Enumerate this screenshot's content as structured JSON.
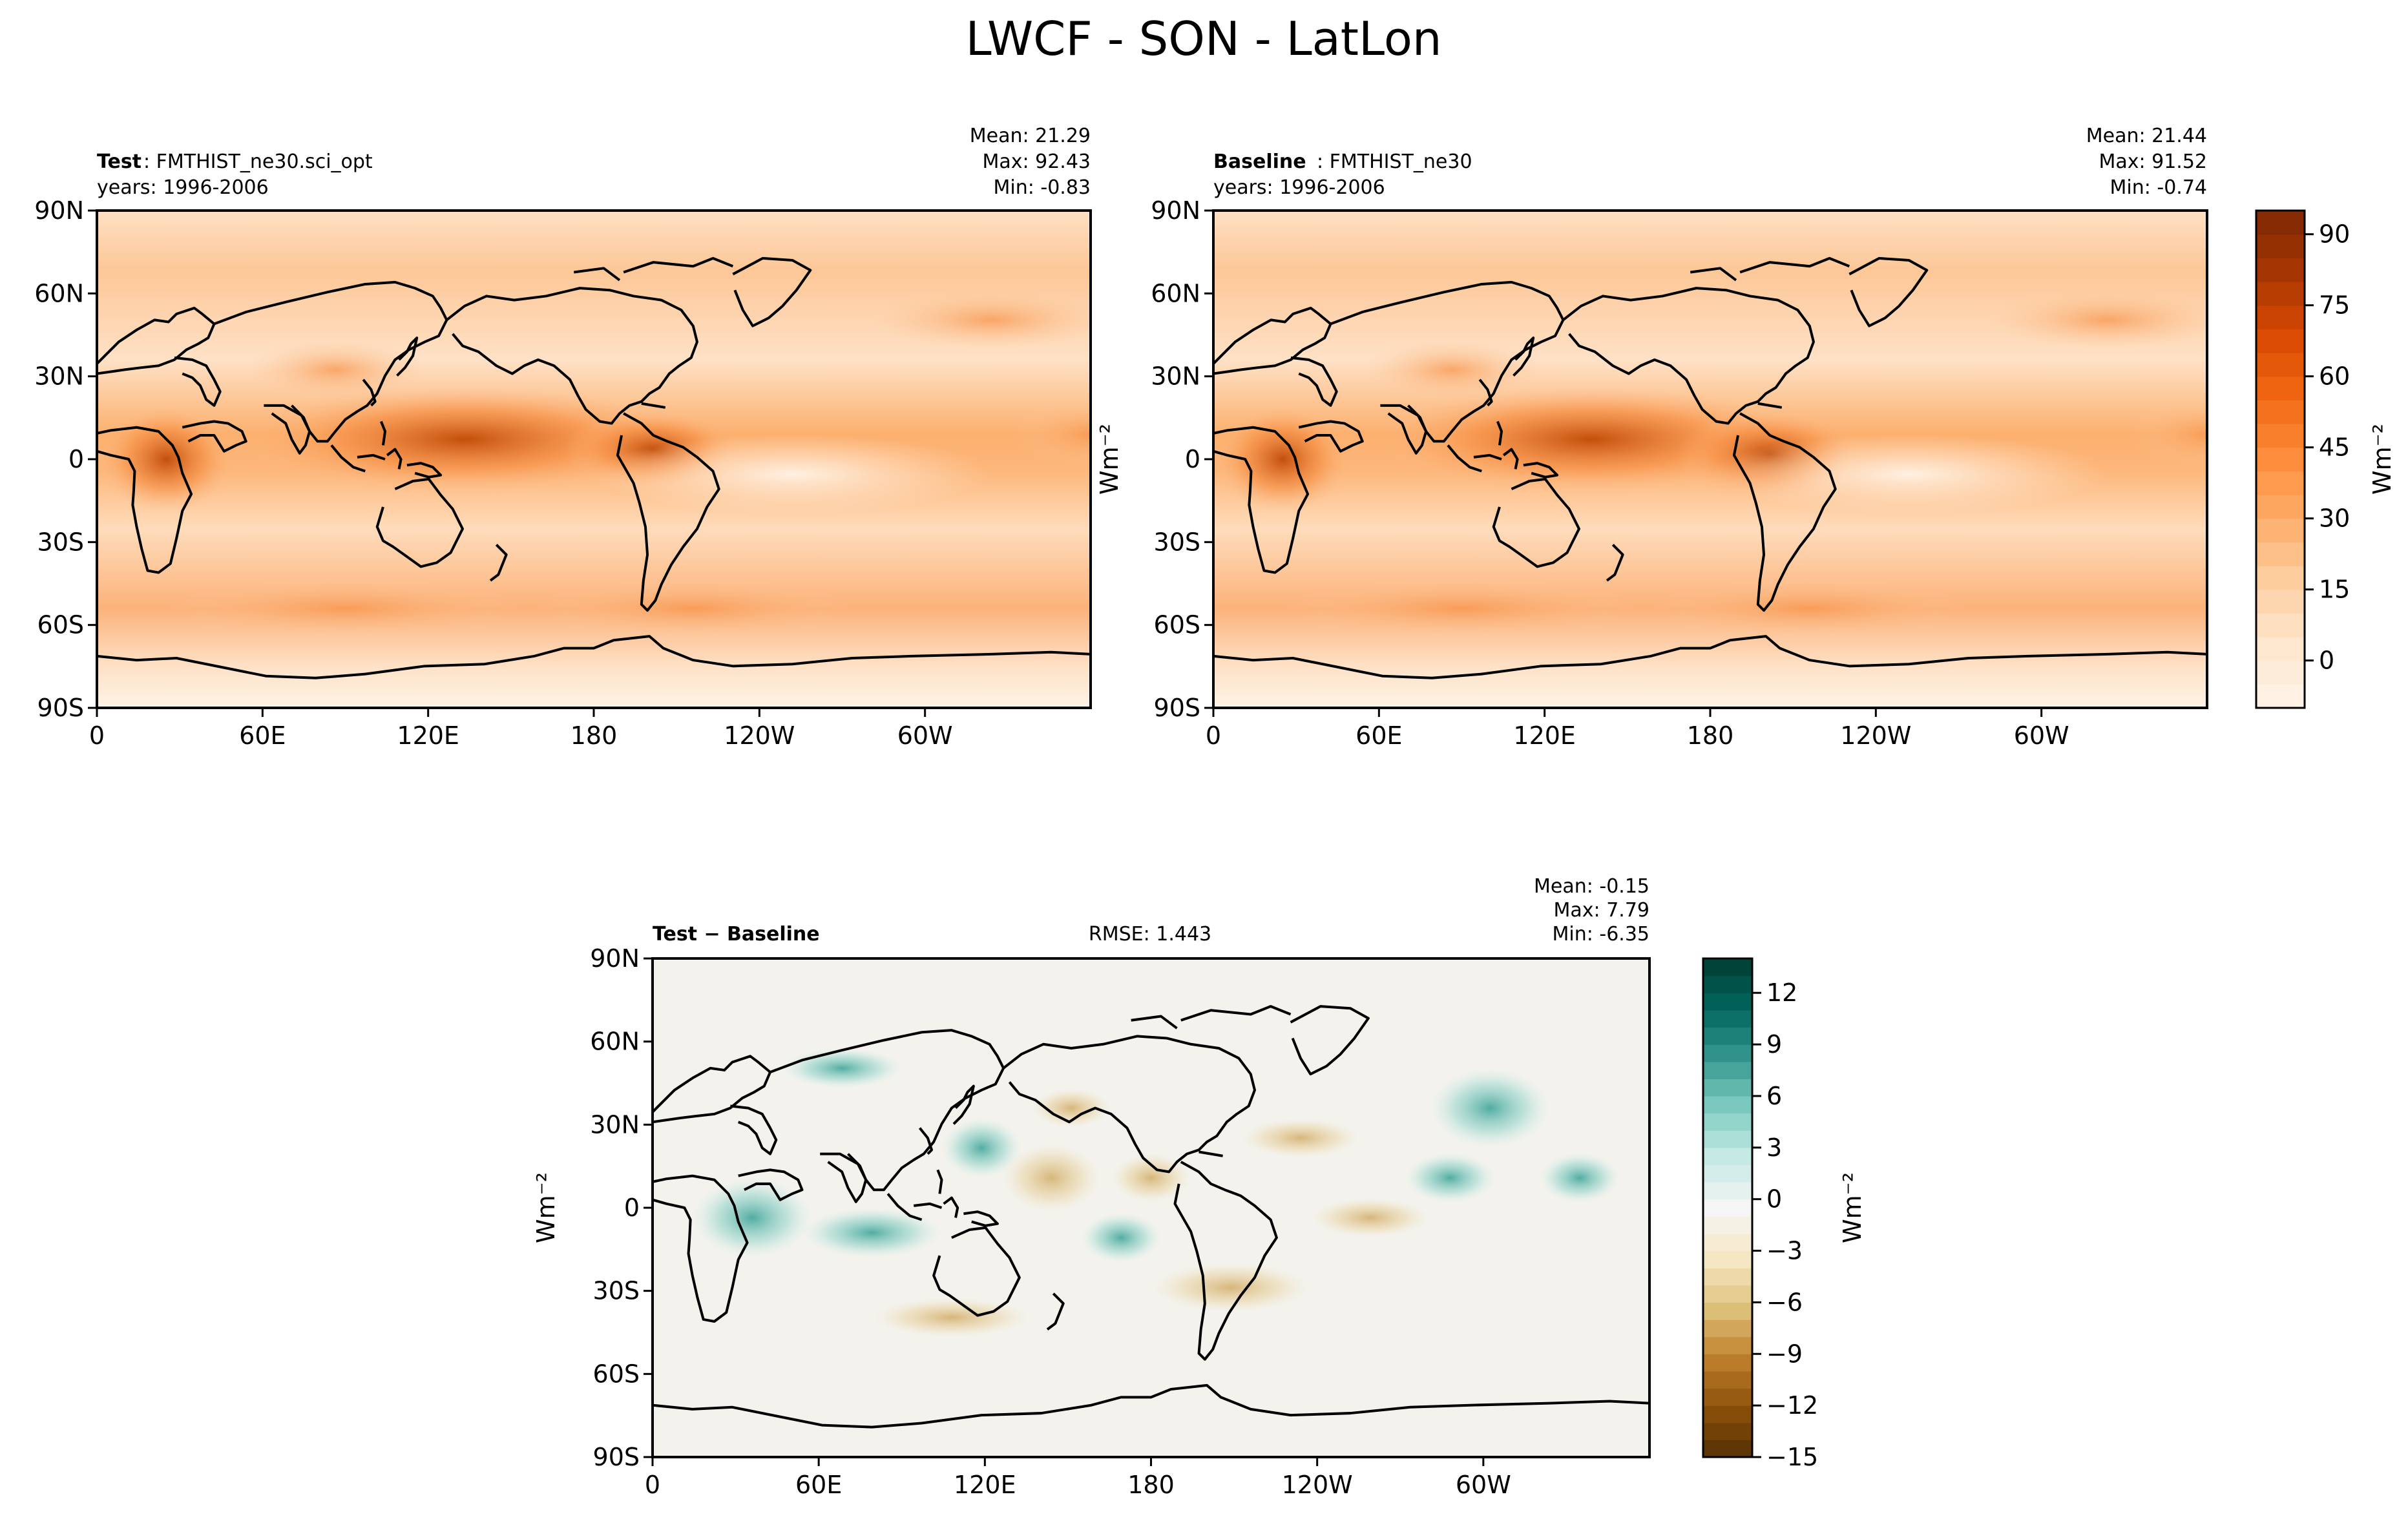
{
  "figure": {
    "title": "LWCF - SON - LatLon"
  },
  "panels": [
    {
      "id": "test",
      "label_bold": "Test",
      "label_rest": ": FMTHIST_ne30.sci_opt",
      "years": "years: 1996-2006",
      "stats": {
        "mean": "Mean: 21.29",
        "max": "Max: 92.43",
        "min": "Min: -0.83"
      },
      "rmse": ""
    },
    {
      "id": "baseline",
      "label_bold": "Baseline",
      "label_rest": ": FMTHIST_ne30",
      "years": "years: 1996-2006",
      "stats": {
        "mean": "Mean: 21.44",
        "max": "Max: 91.52",
        "min": "Min: -0.74"
      },
      "rmse": ""
    },
    {
      "id": "diff",
      "label_bold": "Test − Baseline",
      "label_rest": "",
      "years": "",
      "stats": {
        "mean": "Mean: -0.15",
        "max": "Max:  7.79",
        "min": "Min: -6.35"
      },
      "rmse": "RMSE: 1.443"
    }
  ],
  "axes": {
    "lat_ticks": [
      "90N",
      "60N",
      "30N",
      "0",
      "30S",
      "60S",
      "90S"
    ],
    "lon_ticks": [
      "0",
      "60E",
      "120E",
      "180",
      "120W",
      "60W"
    ]
  },
  "colorbars": {
    "main": {
      "unit": "Wm⁻²",
      "ticks": [
        "90",
        "75",
        "60",
        "45",
        "30",
        "15",
        "0"
      ],
      "range": [
        -10,
        95
      ],
      "colors": [
        "#fff5eb",
        "#fee6ce",
        "#fdd0a2",
        "#fdae6b",
        "#fd8d3c",
        "#f16913",
        "#d94801",
        "#a63603",
        "#7f2704"
      ]
    },
    "diff": {
      "unit": "Wm⁻²",
      "ticks": [
        "12",
        "9",
        "6",
        "3",
        "0",
        "−3",
        "−6",
        "−9",
        "−12",
        "−15"
      ],
      "range": [
        -15,
        14
      ],
      "colors": [
        "#543005",
        "#8c510a",
        "#bf812d",
        "#dfc27d",
        "#f6e8c3",
        "#f5f5f5",
        "#c7eae5",
        "#80cdc1",
        "#35978f",
        "#01665e",
        "#003c30"
      ]
    }
  },
  "side_unit_labels": {
    "between_top_maps": "Wm⁻²",
    "left_of_diff": "Wm⁻²"
  }
}
